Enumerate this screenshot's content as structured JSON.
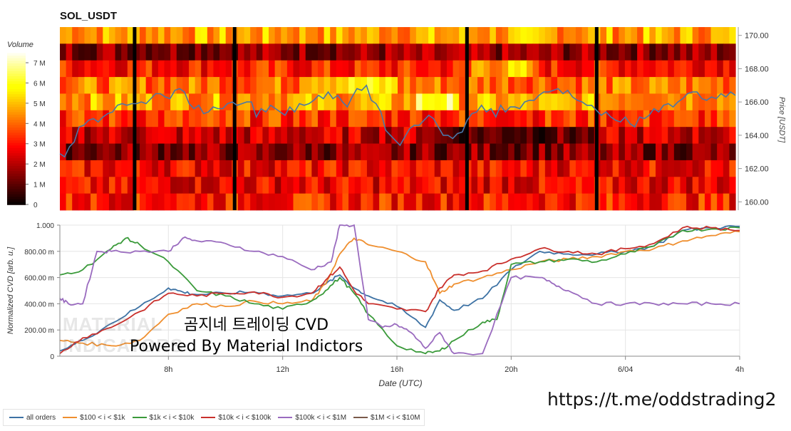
{
  "title": "SOL_USDT",
  "watermark": "MATERIAL INDICATORS",
  "overlay": {
    "line1": "곰지네 트레이딩 CVD",
    "line2": "Powered By Material Indictors"
  },
  "url": "https://t.me/oddstrading2",
  "colors": {
    "all_orders": "#3d72a4",
    "s100_1k": "#ef8f2f",
    "s1k_10k": "#3a9a3a",
    "s10k_100k": "#c9302c",
    "s100k_1m": "#9a6bbf",
    "s1m_10m": "#7a5a4a",
    "price_line": "#4a77a8"
  },
  "chart_data": [
    {
      "type": "heatmap",
      "title": "SOL_USDT",
      "ylabel": "Price [USDT]",
      "yticks": [
        "170.00",
        "168.00",
        "166.00",
        "164.00",
        "162.00",
        "160.00"
      ],
      "ylim": [
        159.5,
        170.5
      ],
      "colorbar": {
        "label": "Volume",
        "ticks": [
          "7 M",
          "6 M",
          "5 M",
          "4 M",
          "3 M",
          "2 M",
          "1 M",
          "0"
        ],
        "range": [
          0,
          7.6
        ]
      },
      "price_series": [
        162.9,
        162.7,
        163.3,
        163.6,
        164.5,
        164.6,
        164.9,
        165.0,
        164.8,
        165.1,
        165.3,
        165.4,
        165.8,
        165.9,
        165.8,
        165.9,
        165.9,
        166.0,
        165.9,
        166.2,
        166.5,
        166.5,
        166.3,
        166.2,
        166.7,
        166.8,
        166.6,
        165.9,
        165.6,
        165.8,
        165.3,
        165.4,
        165.7,
        165.6,
        165.6,
        165.9,
        166.0,
        165.8,
        165.9,
        166.0,
        166.0,
        165.1,
        165.6,
        165.4,
        165.8,
        165.6,
        165.4,
        165.2,
        165.7,
        165.4,
        165.9,
        165.8,
        165.9,
        166.1,
        166.4,
        166.2,
        166.6,
        166.2,
        166.4,
        166.0,
        165.7,
        166.3,
        166.8,
        166.7,
        167.0,
        166.1,
        165.9,
        165.4,
        164.3,
        164.0,
        163.7,
        163.4,
        163.9,
        164.4,
        164.6,
        164.6,
        164.9,
        165.2,
        165.0,
        164.5,
        164.0,
        164.0,
        163.8,
        164.1,
        164.2,
        164.9,
        165.3,
        165.4,
        165.8,
        165.4,
        165.6,
        165.1,
        165.8,
        165.4,
        165.7,
        165.7,
        165.6,
        166.0,
        166.1,
        166.1,
        166.4,
        166.6,
        166.6,
        166.7,
        166.8,
        166.5,
        166.7,
        166.3,
        166.1,
        166.0,
        165.8,
        165.8,
        165.5,
        165.2,
        165.4,
        165.1,
        164.9,
        164.8,
        165.1,
        164.7,
        164.5,
        165.1,
        165.0,
        165.2,
        165.6,
        165.4,
        165.8,
        165.9,
        165.7,
        166.0,
        166.2,
        166.5,
        166.6,
        166.6,
        166.2,
        166.1,
        166.3,
        166.2,
        166.5,
        166.3,
        166.6,
        166.4
      ],
      "dividers": [
        1,
        2,
        3,
        4
      ]
    },
    {
      "type": "line",
      "xlabel": "Date (UTC)",
      "ylabel": "Normalized CVD [arb. u.]",
      "yticks": [
        "1.000",
        "800.00 m",
        "600.00 m",
        "400.00 m",
        "200.00 m",
        "0"
      ],
      "xticks": [
        "8h",
        "12h",
        "16h",
        "20h",
        "6/04",
        "4h"
      ],
      "ylim": [
        0,
        1
      ],
      "xlim": [
        4.2,
        28
      ],
      "xtick_values": [
        8,
        12,
        16,
        20,
        24,
        28
      ],
      "series": [
        {
          "name": "all orders",
          "color_key": "all_orders",
          "values": [
            [
              4.2,
              0.04
            ],
            [
              5,
              0.12
            ],
            [
              6,
              0.25
            ],
            [
              7,
              0.38
            ],
            [
              8,
              0.52
            ],
            [
              8.5,
              0.49
            ],
            [
              9,
              0.47
            ],
            [
              10,
              0.48
            ],
            [
              11,
              0.49
            ],
            [
              12,
              0.46
            ],
            [
              13,
              0.48
            ],
            [
              13.5,
              0.55
            ],
            [
              14,
              0.62
            ],
            [
              14.5,
              0.52
            ],
            [
              15,
              0.46
            ],
            [
              16,
              0.38
            ],
            [
              17,
              0.22
            ],
            [
              17.5,
              0.43
            ],
            [
              18,
              0.35
            ],
            [
              19,
              0.44
            ],
            [
              20,
              0.66
            ],
            [
              21,
              0.8
            ],
            [
              22,
              0.78
            ],
            [
              23,
              0.78
            ],
            [
              24,
              0.8
            ],
            [
              25,
              0.84
            ],
            [
              26,
              0.96
            ],
            [
              27,
              0.98
            ],
            [
              28,
              0.99
            ]
          ]
        },
        {
          "name": "$100 < i < $1k",
          "color_key": "s100_1k",
          "values": [
            [
              4.2,
              0.12
            ],
            [
              5,
              0.1
            ],
            [
              6,
              0.08
            ],
            [
              7,
              0.12
            ],
            [
              8,
              0.32
            ],
            [
              9,
              0.4
            ],
            [
              10,
              0.38
            ],
            [
              11,
              0.42
            ],
            [
              12,
              0.4
            ],
            [
              13,
              0.42
            ],
            [
              13.5,
              0.55
            ],
            [
              14,
              0.78
            ],
            [
              14.5,
              0.9
            ],
            [
              15,
              0.85
            ],
            [
              16,
              0.8
            ],
            [
              17,
              0.72
            ],
            [
              17.5,
              0.48
            ],
            [
              18,
              0.55
            ],
            [
              19,
              0.6
            ],
            [
              20,
              0.66
            ],
            [
              21,
              0.72
            ],
            [
              22,
              0.74
            ],
            [
              23,
              0.76
            ],
            [
              24,
              0.8
            ],
            [
              25,
              0.82
            ],
            [
              26,
              0.88
            ],
            [
              27,
              0.92
            ],
            [
              28,
              0.95
            ]
          ]
        },
        {
          "name": "$1k < i < $10k",
          "color_key": "s1k_10k",
          "values": [
            [
              4.2,
              0.62
            ],
            [
              5,
              0.66
            ],
            [
              6,
              0.82
            ],
            [
              6.5,
              0.9
            ],
            [
              7,
              0.85
            ],
            [
              8,
              0.72
            ],
            [
              9,
              0.5
            ],
            [
              10,
              0.46
            ],
            [
              11,
              0.4
            ],
            [
              12,
              0.36
            ],
            [
              13,
              0.42
            ],
            [
              13.5,
              0.5
            ],
            [
              14,
              0.6
            ],
            [
              14.5,
              0.48
            ],
            [
              15,
              0.32
            ],
            [
              16,
              0.08
            ],
            [
              17,
              0.02
            ],
            [
              17.5,
              0.04
            ],
            [
              18,
              0.12
            ],
            [
              19,
              0.26
            ],
            [
              19.5,
              0.28
            ],
            [
              20,
              0.7
            ],
            [
              21,
              0.72
            ],
            [
              22,
              0.74
            ],
            [
              23,
              0.72
            ],
            [
              24,
              0.78
            ],
            [
              25,
              0.84
            ],
            [
              26,
              0.96
            ],
            [
              27,
              0.97
            ],
            [
              28,
              0.98
            ]
          ]
        },
        {
          "name": "$10k < i < $100k",
          "color_key": "s10k_100k",
          "values": [
            [
              4.2,
              0.02
            ],
            [
              5,
              0.14
            ],
            [
              6,
              0.22
            ],
            [
              7,
              0.34
            ],
            [
              8,
              0.48
            ],
            [
              9,
              0.46
            ],
            [
              10,
              0.48
            ],
            [
              11,
              0.49
            ],
            [
              12,
              0.45
            ],
            [
              13,
              0.48
            ],
            [
              13.5,
              0.58
            ],
            [
              14,
              0.68
            ],
            [
              14.5,
              0.5
            ],
            [
              15,
              0.4
            ],
            [
              16,
              0.36
            ],
            [
              17,
              0.34
            ],
            [
              17.5,
              0.52
            ],
            [
              18,
              0.62
            ],
            [
              19,
              0.65
            ],
            [
              20,
              0.74
            ],
            [
              21,
              0.82
            ],
            [
              22,
              0.8
            ],
            [
              23,
              0.78
            ],
            [
              24,
              0.82
            ],
            [
              25,
              0.86
            ],
            [
              26,
              0.98
            ],
            [
              27,
              0.98
            ],
            [
              28,
              0.96
            ]
          ]
        },
        {
          "name": "$100k < i < $1M",
          "color_key": "s100k_1m",
          "values": [
            [
              4.2,
              0.44
            ],
            [
              4.5,
              0.4
            ],
            [
              5,
              0.4
            ],
            [
              5.5,
              0.8
            ],
            [
              6,
              0.8
            ],
            [
              7,
              0.8
            ],
            [
              8,
              0.8
            ],
            [
              8.5,
              0.9
            ],
            [
              9,
              0.88
            ],
            [
              10,
              0.86
            ],
            [
              11,
              0.8
            ],
            [
              12,
              0.76
            ],
            [
              13,
              0.66
            ],
            [
              13.7,
              0.72
            ],
            [
              14,
              1.0
            ],
            [
              14.5,
              1.0
            ],
            [
              15,
              0.28
            ],
            [
              15.5,
              0.22
            ],
            [
              16,
              0.24
            ],
            [
              16.5,
              0.18
            ],
            [
              17,
              0.06
            ],
            [
              17.5,
              0.18
            ],
            [
              18,
              0.02
            ],
            [
              19,
              0.02
            ],
            [
              20,
              0.6
            ],
            [
              21,
              0.6
            ],
            [
              21.5,
              0.55
            ],
            [
              22,
              0.5
            ],
            [
              23,
              0.4
            ],
            [
              24,
              0.4
            ],
            [
              25,
              0.4
            ],
            [
              26,
              0.4
            ],
            [
              27,
              0.4
            ],
            [
              28,
              0.4
            ]
          ]
        },
        {
          "name": "$1M < i < $10M",
          "color_key": "s1m_10m",
          "values": []
        }
      ]
    }
  ]
}
